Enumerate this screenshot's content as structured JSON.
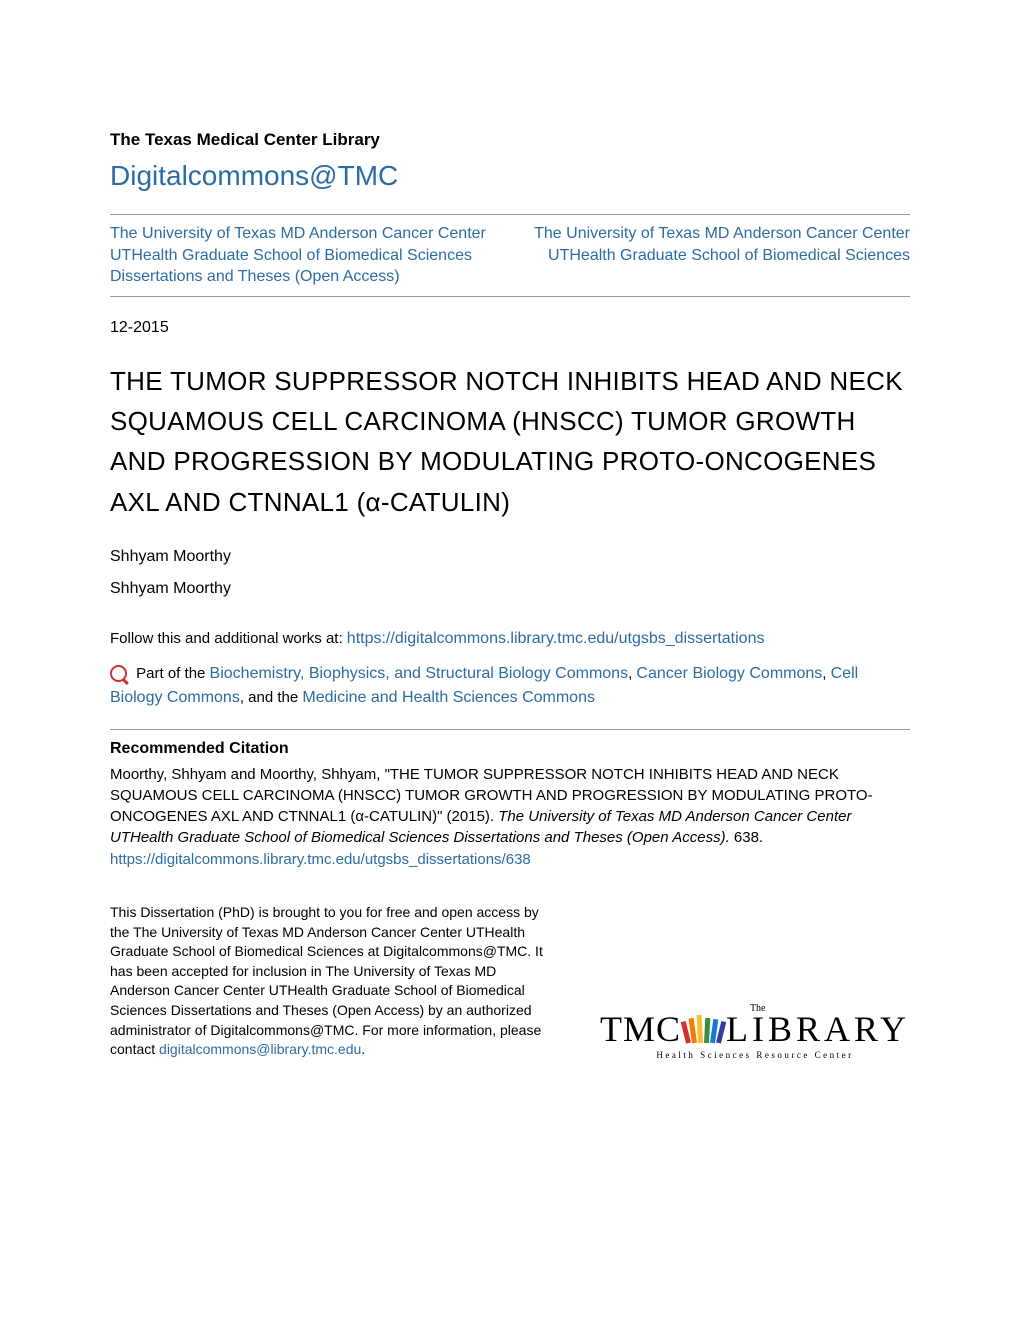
{
  "header": {
    "library_name": "The Texas Medical Center Library",
    "site_name": "Digitalcommons@TMC",
    "left_link": "The University of Texas MD Anderson Cancer Center UTHealth Graduate School of Biomedical Sciences Dissertations and Theses (Open Access)",
    "right_link": "The University of Texas MD Anderson Cancer Center UTHealth Graduate School of Biomedical Sciences"
  },
  "date": "12-2015",
  "title": "THE TUMOR SUPPRESSOR NOTCH INHIBITS HEAD AND NECK SQUAMOUS CELL CARCINOMA (HNSCC) TUMOR GROWTH AND PROGRESSION BY MODULATING PROTO-ONCOGENES AXL AND CTNNAL1 (α-CATULIN)",
  "authors": [
    "Shhyam Moorthy",
    "Shhyam Moorthy"
  ],
  "follow": {
    "prefix": "Follow this and additional works at: ",
    "url": "https://digitalcommons.library.tmc.edu/utgsbs_dissertations"
  },
  "commons": {
    "prefix": " Part of the ",
    "links": [
      "Biochemistry, Biophysics, and Structural Biology Commons",
      "Cancer Biology Commons",
      "Cell Biology Commons",
      "Medicine and Health Sciences Commons"
    ],
    "sep": ", ",
    "last_sep": ", and the "
  },
  "citation": {
    "heading": "Recommended Citation",
    "text_part1": "Moorthy, Shhyam and Moorthy, Shhyam, \"THE TUMOR SUPPRESSOR NOTCH INHIBITS HEAD AND NECK SQUAMOUS CELL CARCINOMA (HNSCC) TUMOR GROWTH AND PROGRESSION BY MODULATING PROTO-ONCOGENES AXL AND CTNNAL1 (α-CATULIN)\" (2015). ",
    "text_italic": "The University of Texas MD Anderson Cancer Center UTHealth Graduate School of Biomedical Sciences Dissertations and Theses (Open Access).",
    "text_part2": " 638.",
    "url": "https://digitalcommons.library.tmc.edu/utgsbs_dissertations/638"
  },
  "footer": {
    "note_part1": "This Dissertation (PhD) is brought to you for free and open access by the The University of Texas MD Anderson Cancer Center UTHealth Graduate School of Biomedical Sciences at Digitalcommons@TMC. It has been accepted for inclusion in The University of Texas MD Anderson Cancer Center UTHealth Graduate School of Biomedical Sciences Dissertations and Theses (Open Access) by an authorized administrator of Digitalcommons@TMC. For more information, please contact ",
    "note_link": "digitalcommons@library.tmc.edu",
    "note_part2": "."
  },
  "logo": {
    "the": "The",
    "tmc": "TMC",
    "library": "LIBRARY",
    "subtitle": "Health Sciences Resource Center",
    "book_colors": [
      "#d32f2f",
      "#f57c00",
      "#fbc02d",
      "#388e3c",
      "#1976d2",
      "#303f9f"
    ],
    "book_heights": [
      22,
      25,
      28,
      25,
      24,
      22
    ],
    "book_rotations": [
      -14,
      -8,
      -3,
      3,
      8,
      14
    ]
  },
  "colors": {
    "link": "#2b6ca3",
    "text": "#000000",
    "background": "#ffffff",
    "accent_red": "#d32f2f"
  }
}
